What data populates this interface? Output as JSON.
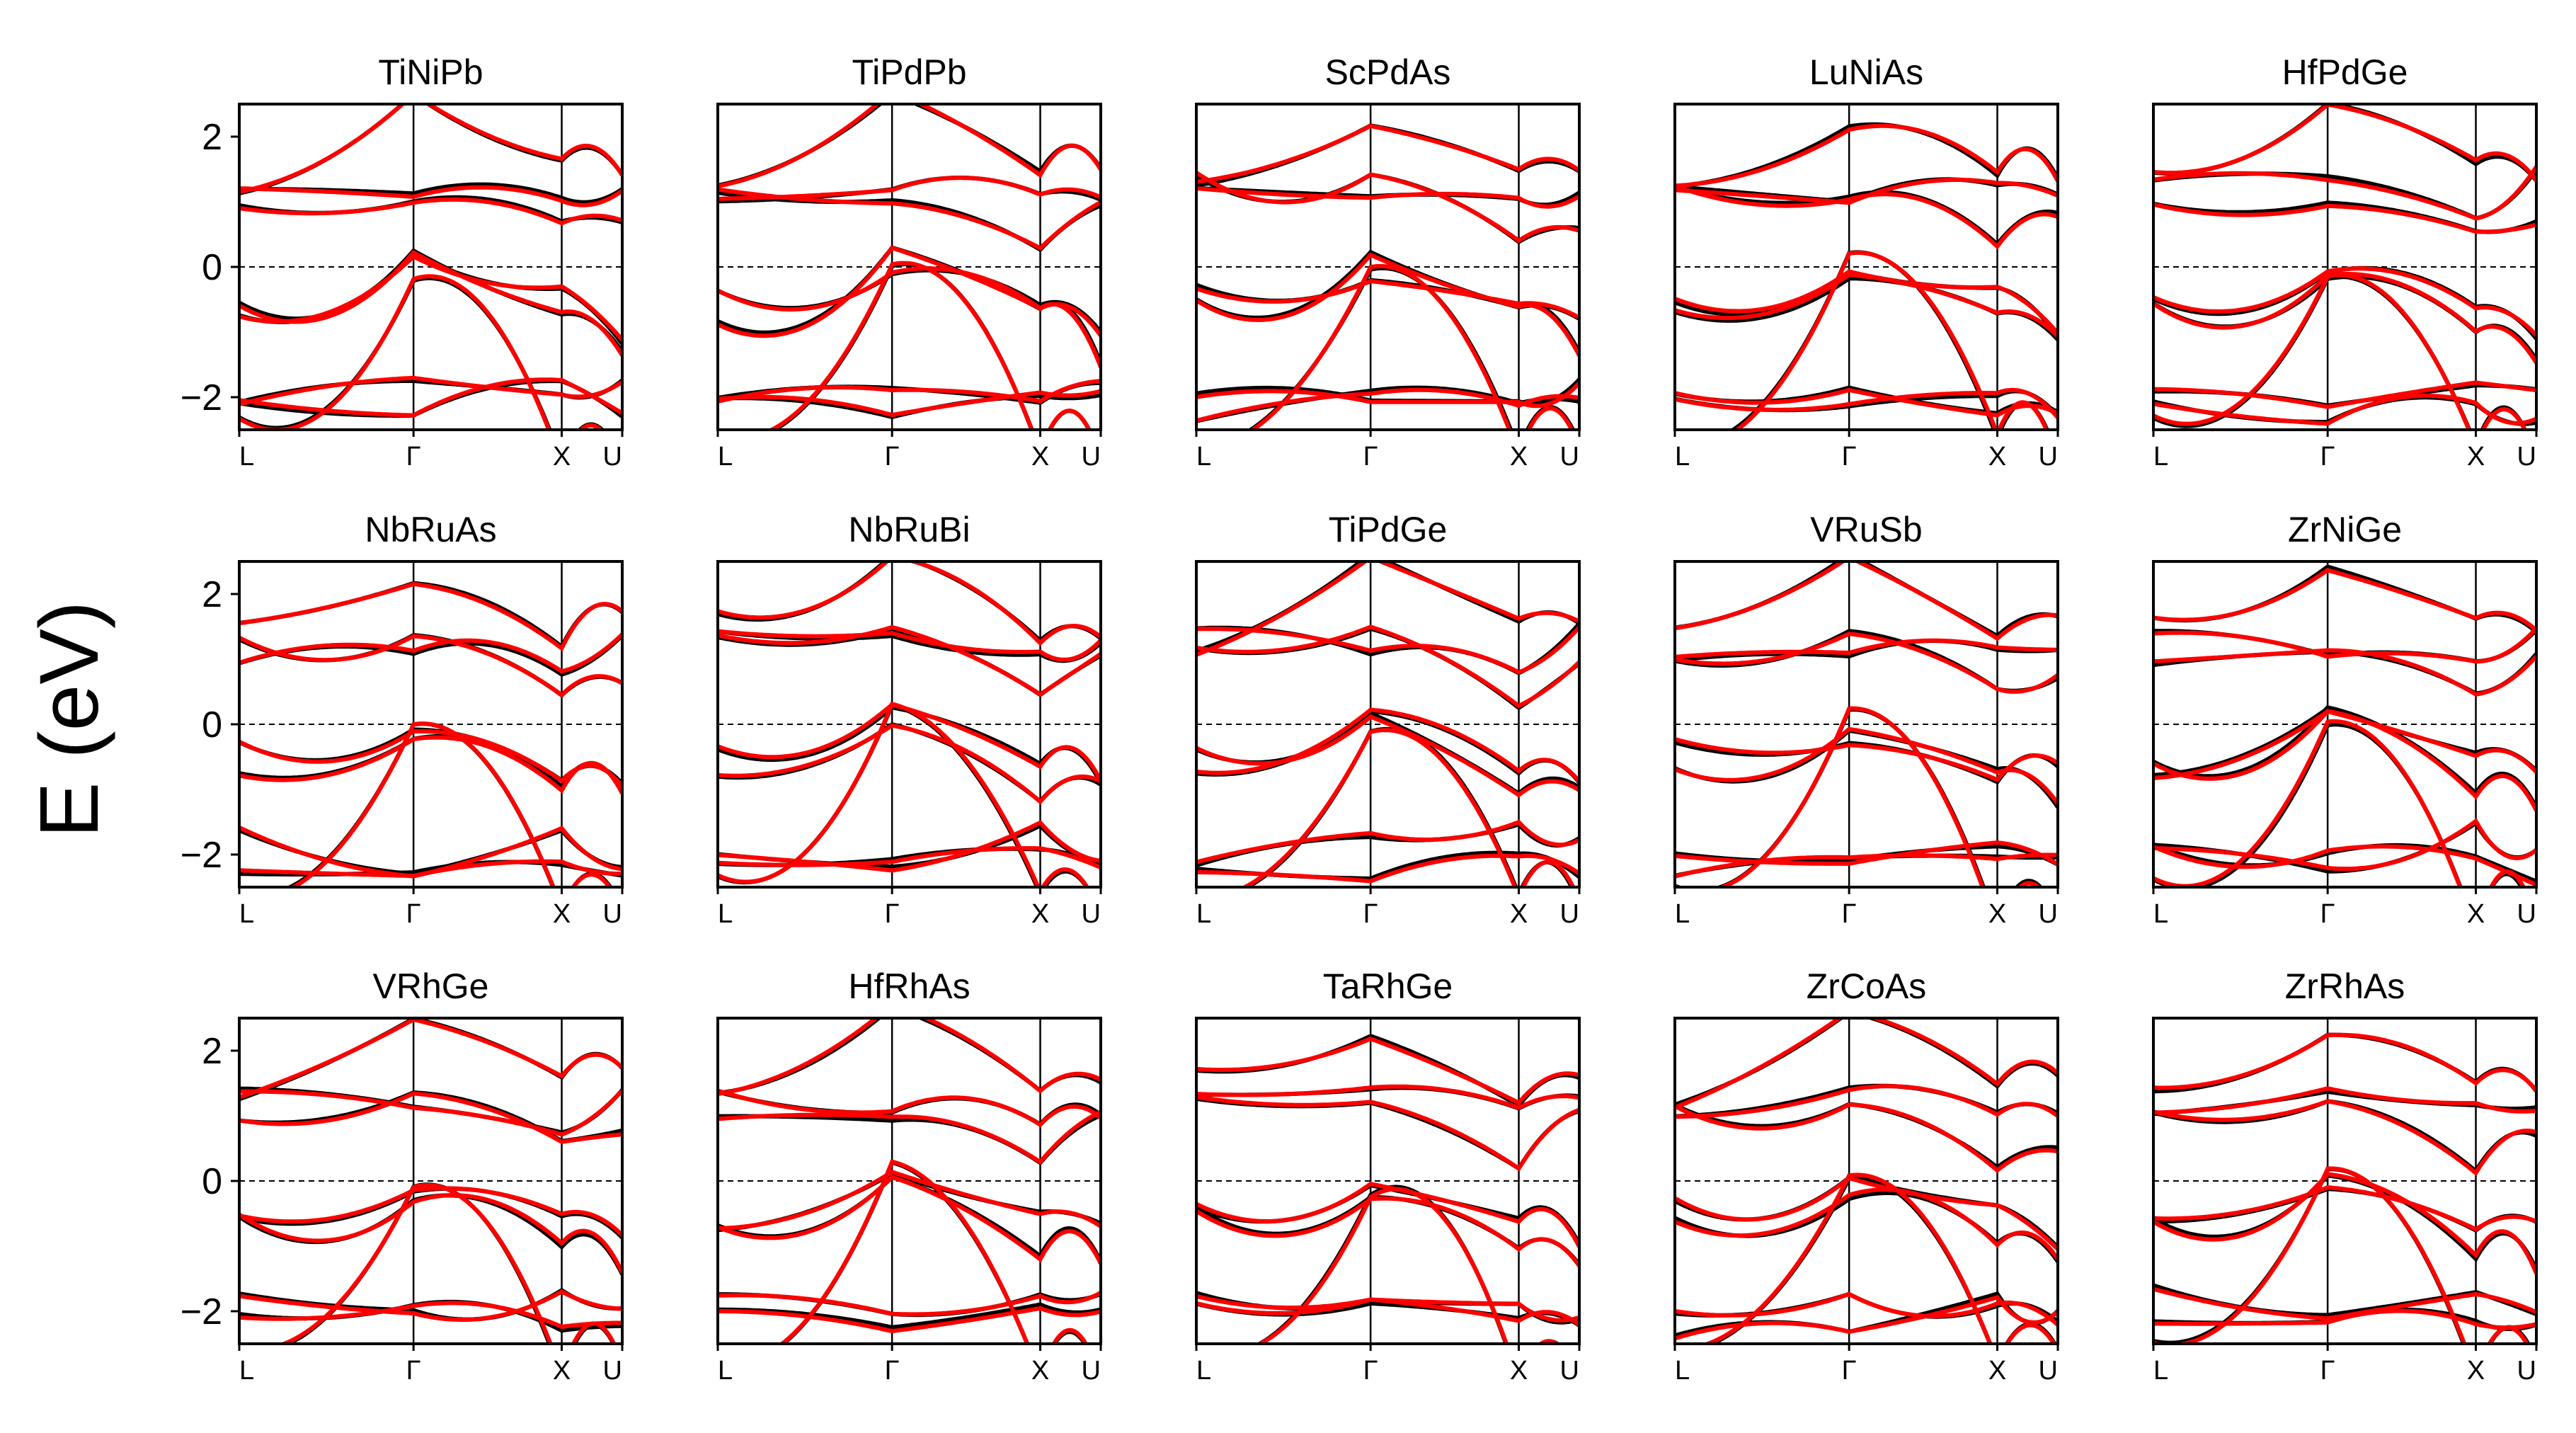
{
  "figure": {
    "ylabel": "E (eV)"
  },
  "chart_data": {
    "type": "line",
    "series_colors": [
      "#000000",
      "#ff0000"
    ],
    "ylim": [
      -2.5,
      2.5
    ],
    "yticks": [
      -2,
      0,
      2
    ],
    "ytick_labels": [
      "−2",
      "0",
      "2"
    ],
    "x_labels": [
      "L",
      "Γ",
      "X",
      "U"
    ],
    "fermi_level": 0,
    "panels": [
      {
        "title": "TiNiPb"
      },
      {
        "title": "TiPdPb"
      },
      {
        "title": "ScPdAs"
      },
      {
        "title": "LuNiAs"
      },
      {
        "title": "HfPdGe"
      },
      {
        "title": "NbRuAs"
      },
      {
        "title": "NbRuBi"
      },
      {
        "title": "TiPdGe"
      },
      {
        "title": "VRuSb"
      },
      {
        "title": "ZrNiGe"
      },
      {
        "title": "VRhGe"
      },
      {
        "title": "HfRhAs"
      },
      {
        "title": "TaRhGe"
      },
      {
        "title": "ZrCoAs"
      },
      {
        "title": "ZrRhAs"
      }
    ]
  }
}
